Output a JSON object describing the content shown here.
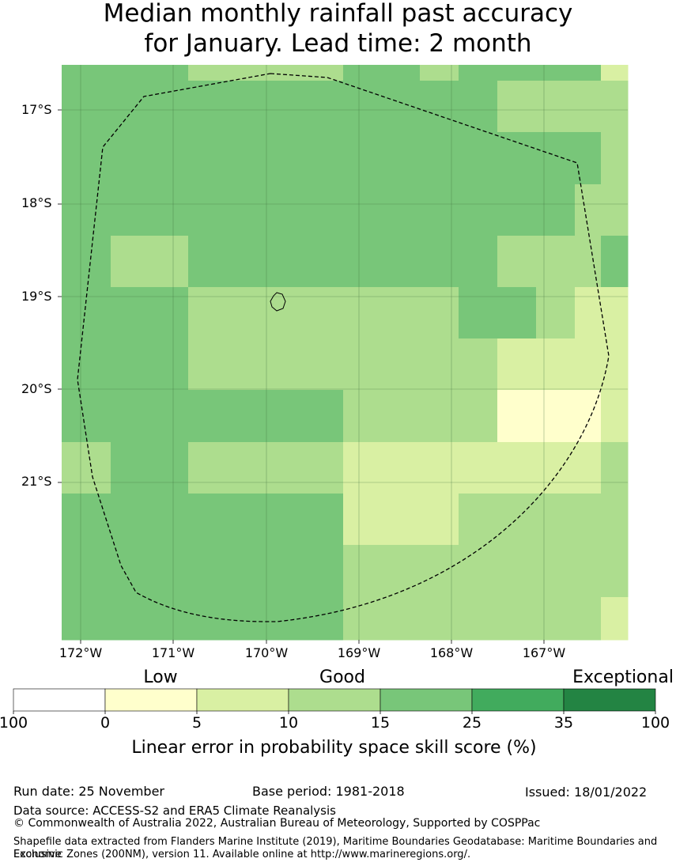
{
  "title": {
    "line1": "Median monthly rainfall past accuracy",
    "line2": "for January. Lead time: 2 month"
  },
  "map": {
    "lat_labels": [
      "17°S",
      "18°S",
      "19°S",
      "20°S",
      "21°S"
    ],
    "lon_labels": [
      "172°W",
      "171°W",
      "170°W",
      "169°W",
      "168°W",
      "167°W"
    ],
    "zone_boundary_style": "dashed",
    "grid_colors": [
      [
        "#78c679",
        "#78c679",
        "#addd8e",
        "#addd8e",
        "#78c679",
        "#addd8e",
        "#78c679",
        "#78c679",
        "#78c679",
        "#78c679",
        "#d9f0a3"
      ],
      [
        "#78c679",
        "#78c679",
        "#78c679",
        "#78c679",
        "#78c679",
        "#78c679",
        "#78c679",
        "#addd8e",
        "#addd8e",
        "#addd8e",
        "#addd8e"
      ],
      [
        "#78c679",
        "#78c679",
        "#78c679",
        "#78c679",
        "#78c679",
        "#78c679",
        "#78c679",
        "#78c679",
        "#78c679",
        "#78c679",
        "#addd8e"
      ],
      [
        "#78c679",
        "#78c679",
        "#78c679",
        "#78c679",
        "#78c679",
        "#78c679",
        "#78c679",
        "#78c679",
        "#78c679",
        "#addd8e",
        "#addd8e"
      ],
      [
        "#78c679",
        "#addd8e",
        "#78c679",
        "#78c679",
        "#78c679",
        "#78c679",
        "#78c679",
        "#addd8e",
        "#addd8e",
        "#addd8e",
        "#78c679"
      ],
      [
        "#78c679",
        "#78c679",
        "#addd8e",
        "#addd8e",
        "#addd8e",
        "#addd8e",
        "#78c679",
        "#78c679",
        "#addd8e",
        "#d9f0a3",
        "#d9f0a3"
      ],
      [
        "#78c679",
        "#78c679",
        "#addd8e",
        "#addd8e",
        "#addd8e",
        "#addd8e",
        "#addd8e",
        "#d9f0a3",
        "#d9f0a3",
        "#d9f0a3",
        "#d9f0a3"
      ],
      [
        "#78c679",
        "#78c679",
        "#78c679",
        "#78c679",
        "#addd8e",
        "#addd8e",
        "#addd8e",
        "#ffffcc",
        "#ffffcc",
        "#ffffcc",
        "#d9f0a3"
      ],
      [
        "#addd8e",
        "#78c679",
        "#addd8e",
        "#addd8e",
        "#d9f0a3",
        "#d9f0a3",
        "#d9f0a3",
        "#d9f0a3",
        "#d9f0a3",
        "#d9f0a3",
        "#addd8e"
      ],
      [
        "#78c679",
        "#78c679",
        "#78c679",
        "#78c679",
        "#d9f0a3",
        "#d9f0a3",
        "#addd8e",
        "#addd8e",
        "#addd8e",
        "#addd8e",
        "#addd8e"
      ],
      [
        "#78c679",
        "#78c679",
        "#78c679",
        "#78c679",
        "#addd8e",
        "#addd8e",
        "#addd8e",
        "#addd8e",
        "#addd8e",
        "#addd8e",
        "#addd8e"
      ],
      [
        "#78c679",
        "#78c679",
        "#78c679",
        "#78c679",
        "#addd8e",
        "#addd8e",
        "#addd8e",
        "#addd8e",
        "#addd8e",
        "#addd8e",
        "#d9f0a3"
      ]
    ]
  },
  "legend": {
    "categories": [
      "Low",
      "Good",
      "Exceptional"
    ],
    "ticks": [
      "100",
      "0",
      "5",
      "10",
      "15",
      "25",
      "35",
      "100"
    ],
    "colors": [
      "#ffffff",
      "#ffffcc",
      "#d9f0a3",
      "#addd8e",
      "#78c679",
      "#41ab5d",
      "#238443"
    ],
    "label": "Linear error in probability space skill score (%)"
  },
  "footer": {
    "run_date": "Run date: 25 November",
    "base_period": "Base period: 1981-2018",
    "issued": "Issued: 18/01/2022",
    "data_source": "Data source: ACCESS-S2 and ERA5 Climate Reanalysis",
    "copyright": "© Commonwealth of Australia 2022, Australian Bureau of Meteorology, Supported by COSPPac",
    "shapefile_line1": "Shapefile data extracted from Flanders Marine Institute (2019), Maritime Boundaries Geodatabase: Maritime Boundaries and Exclusive",
    "shapefile_line2": "Economic Zones (200NM), version 11. Available online at http://www.marineregions.org/."
  }
}
